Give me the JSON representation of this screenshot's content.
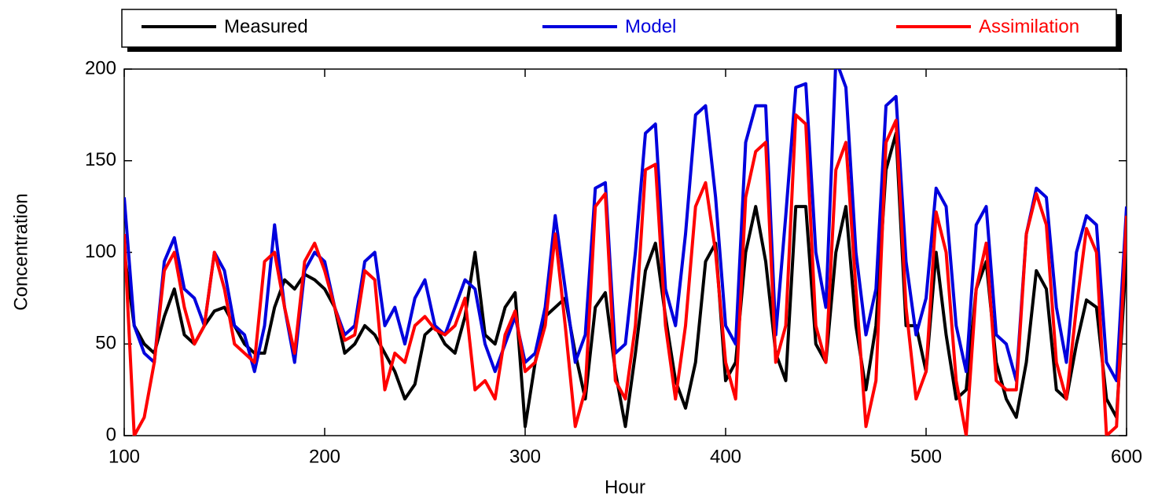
{
  "chart_data": {
    "type": "line",
    "xlabel": "Hour",
    "ylabel": "Concentration",
    "x": [
      100,
      105,
      110,
      115,
      120,
      125,
      130,
      135,
      140,
      145,
      150,
      155,
      160,
      165,
      170,
      175,
      180,
      185,
      190,
      195,
      200,
      205,
      210,
      215,
      220,
      225,
      230,
      235,
      240,
      245,
      250,
      255,
      260,
      265,
      270,
      275,
      280,
      285,
      290,
      295,
      300,
      305,
      310,
      315,
      320,
      325,
      330,
      335,
      340,
      345,
      350,
      355,
      360,
      365,
      370,
      375,
      380,
      385,
      390,
      395,
      400,
      405,
      410,
      415,
      420,
      425,
      430,
      435,
      440,
      445,
      450,
      455,
      460,
      465,
      470,
      475,
      480,
      485,
      490,
      495,
      500,
      505,
      510,
      515,
      520,
      525,
      530,
      535,
      540,
      545,
      550,
      555,
      560,
      565,
      570,
      575,
      580,
      585,
      590,
      595,
      600
    ],
    "series": [
      {
        "name": "Measured",
        "color": "#000000",
        "values": [
          100,
          60,
          50,
          45,
          65,
          80,
          55,
          50,
          60,
          68,
          70,
          60,
          50,
          45,
          45,
          70,
          85,
          80,
          88,
          85,
          80,
          70,
          45,
          50,
          60,
          55,
          45,
          35,
          20,
          28,
          55,
          60,
          50,
          45,
          65,
          100,
          55,
          50,
          70,
          78,
          5,
          40,
          65,
          70,
          75,
          45,
          20,
          70,
          78,
          35,
          5,
          45,
          90,
          105,
          65,
          30,
          15,
          40,
          95,
          105,
          30,
          40,
          100,
          125,
          95,
          45,
          30,
          125,
          125,
          50,
          40,
          100,
          125,
          60,
          25,
          60,
          145,
          165,
          60,
          60,
          35,
          100,
          55,
          20,
          25,
          80,
          95,
          40,
          20,
          10,
          40,
          90,
          80,
          25,
          20,
          50,
          74,
          70,
          20,
          10,
          100
        ]
      },
      {
        "name": "Model",
        "color": "#0000dd",
        "values": [
          130,
          60,
          45,
          40,
          95,
          108,
          80,
          75,
          60,
          100,
          90,
          60,
          55,
          35,
          60,
          115,
          70,
          40,
          90,
          100,
          95,
          70,
          55,
          60,
          95,
          100,
          60,
          70,
          50,
          75,
          85,
          60,
          55,
          70,
          85,
          80,
          50,
          35,
          50,
          65,
          40,
          45,
          70,
          120,
          80,
          40,
          55,
          135,
          138,
          45,
          50,
          100,
          165,
          170,
          80,
          60,
          110,
          175,
          180,
          130,
          60,
          50,
          160,
          180,
          180,
          55,
          120,
          190,
          192,
          100,
          70,
          205,
          190,
          100,
          55,
          80,
          180,
          185,
          95,
          55,
          75,
          135,
          125,
          60,
          35,
          115,
          125,
          55,
          50,
          30,
          110,
          135,
          130,
          70,
          40,
          100,
          120,
          115,
          40,
          30,
          125
        ]
      },
      {
        "name": "Assimilation",
        "color": "#ff0000",
        "values": [
          110,
          0,
          10,
          40,
          90,
          100,
          70,
          50,
          60,
          100,
          80,
          50,
          45,
          40,
          95,
          100,
          70,
          45,
          95,
          105,
          90,
          70,
          52,
          55,
          90,
          85,
          25,
          45,
          40,
          60,
          65,
          58,
          55,
          60,
          75,
          25,
          30,
          20,
          55,
          68,
          35,
          40,
          60,
          110,
          60,
          5,
          25,
          125,
          132,
          30,
          20,
          60,
          145,
          148,
          60,
          20,
          60,
          125,
          138,
          100,
          40,
          20,
          130,
          155,
          160,
          40,
          60,
          175,
          170,
          60,
          40,
          145,
          160,
          80,
          5,
          30,
          160,
          172,
          70,
          20,
          35,
          122,
          100,
          30,
          0,
          80,
          105,
          30,
          25,
          25,
          110,
          132,
          115,
          40,
          20,
          70,
          113,
          100,
          0,
          5,
          120
        ]
      }
    ],
    "xlim": [
      100,
      600
    ],
    "xticks": [
      100,
      200,
      300,
      400,
      500,
      600
    ],
    "ylim": [
      0,
      200
    ],
    "yticks": [
      0,
      50,
      100,
      150,
      200
    ],
    "legend": "top"
  }
}
